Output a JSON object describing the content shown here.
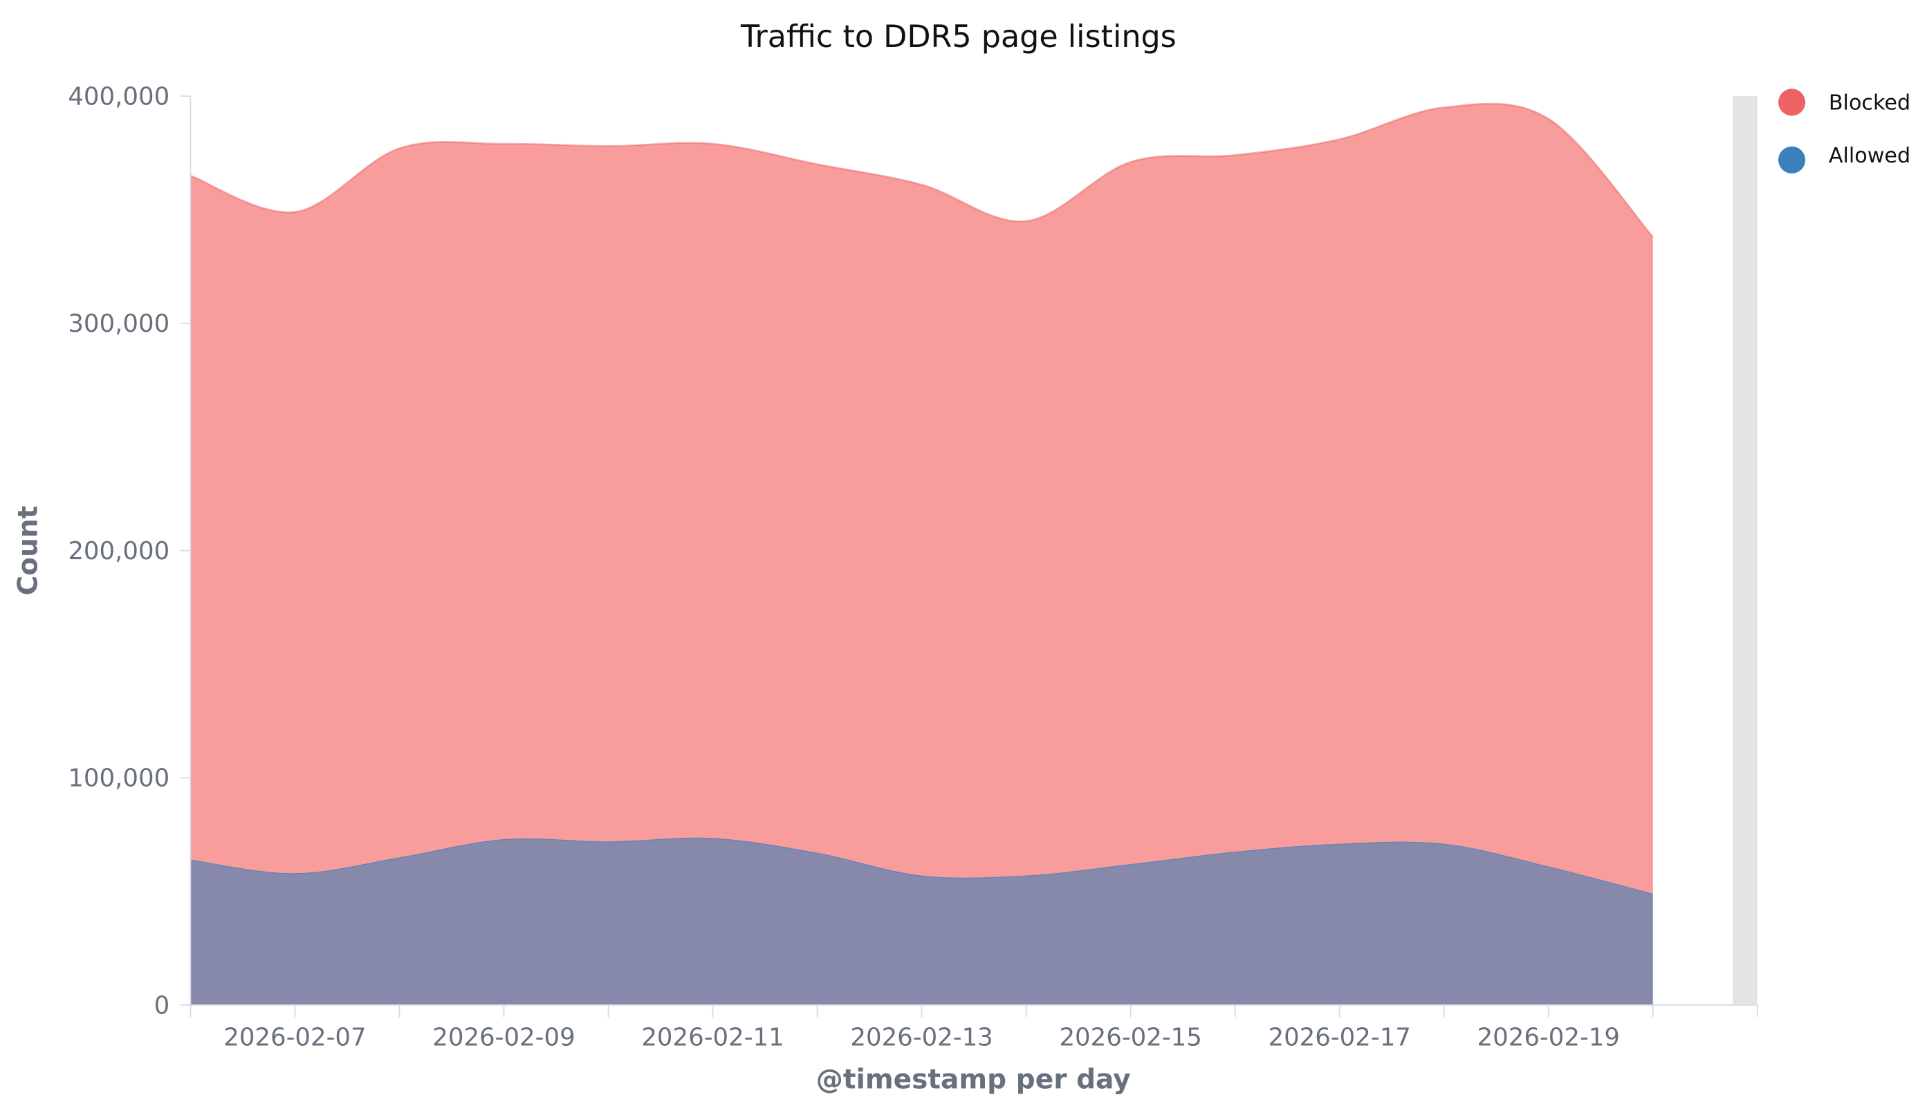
{
  "chart_data": {
    "type": "area",
    "stacked": true,
    "title": "Traffic to DDR5 page listings",
    "xlabel": "@timestamp per day",
    "ylabel": "Count",
    "ylim": [
      0,
      400000
    ],
    "yticks": [
      0,
      100000,
      200000,
      300000,
      400000
    ],
    "ytick_labels": [
      "0",
      "100,000",
      "200,000",
      "300,000",
      "400,000"
    ],
    "xtick_labels": [
      "2026-02-07",
      "2026-02-09",
      "2026-02-11",
      "2026-02-13",
      "2026-02-15",
      "2026-02-17",
      "2026-02-19"
    ],
    "x": [
      "2026-02-06",
      "2026-02-07",
      "2026-02-08",
      "2026-02-09",
      "2026-02-10",
      "2026-02-11",
      "2026-02-12",
      "2026-02-13",
      "2026-02-14",
      "2026-02-15",
      "2026-02-16",
      "2026-02-17",
      "2026-02-18",
      "2026-02-19",
      "2026-02-20"
    ],
    "legend_position": "top-right",
    "grid": false,
    "series": [
      {
        "name": "Allowed",
        "color": "#3b7fbf",
        "fill": "#8789ab",
        "values": [
          64000,
          58000,
          65000,
          73000,
          72000,
          73500,
          67000,
          57000,
          57000,
          62000,
          67500,
          71000,
          71000,
          61000,
          49000
        ]
      },
      {
        "name": "Blocked",
        "color": "#ec6363",
        "fill": "#f99d9c",
        "values": [
          301000,
          291000,
          312000,
          306000,
          306000,
          305500,
          303000,
          304000,
          288000,
          309000,
          306500,
          310000,
          324000,
          329000,
          289000
        ]
      }
    ]
  }
}
